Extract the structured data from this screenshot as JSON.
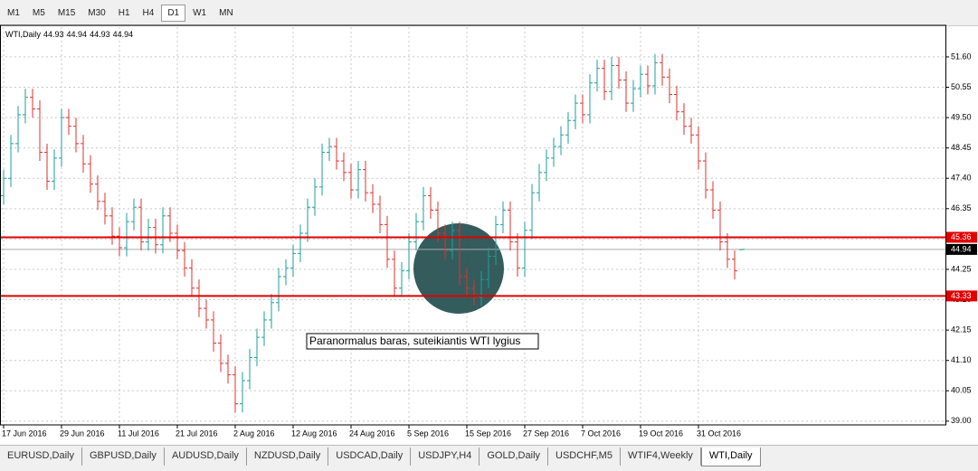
{
  "toolbar": {
    "timeframes": [
      "M1",
      "M5",
      "M15",
      "M30",
      "H1",
      "H4",
      "D1",
      "W1",
      "MN"
    ],
    "active_index": 6
  },
  "chart_data": {
    "type": "ohlc",
    "symbol": "WTI,Daily",
    "categories": [
      "17 Jun 2016",
      null,
      null,
      null,
      null,
      null,
      null,
      null,
      "29 Jun 2016",
      null,
      null,
      null,
      null,
      null,
      null,
      null,
      "11 Jul 2016",
      null,
      null,
      null,
      null,
      null,
      null,
      null,
      "21 Jul 2016",
      null,
      null,
      null,
      null,
      null,
      null,
      null,
      "2 Aug 2016",
      null,
      null,
      null,
      null,
      null,
      null,
      null,
      "12 Aug 2016",
      null,
      null,
      null,
      null,
      null,
      null,
      null,
      "24 Aug 2016",
      null,
      null,
      null,
      null,
      null,
      null,
      null,
      "5 Sep 2016",
      null,
      null,
      null,
      null,
      null,
      null,
      null,
      "15 Sep 2016",
      null,
      null,
      null,
      null,
      null,
      null,
      null,
      "27 Sep 2016",
      null,
      null,
      null,
      null,
      null,
      null,
      null,
      "7 Oct 2016",
      null,
      null,
      null,
      null,
      null,
      null,
      null,
      "19 Oct 2016",
      null,
      null,
      null,
      null,
      null,
      null,
      null,
      "31 Oct 2016",
      null,
      null,
      null,
      null,
      null,
      null
    ],
    "open": [
      46.8,
      47.4,
      48.6,
      49.6,
      50.2,
      49.8,
      48.3,
      47.3,
      48.1,
      49.5,
      49.2,
      48.6,
      47.9,
      47.2,
      46.6,
      46.1,
      45.4,
      45.0,
      45.9,
      46.4,
      45.2,
      45.7,
      45.1,
      46.1,
      45.5,
      44.9,
      44.3,
      43.6,
      42.9,
      42.5,
      41.7,
      41.0,
      40.6,
      39.6,
      40.4,
      41.2,
      41.9,
      42.5,
      43.1,
      44.0,
      44.3,
      44.8,
      45.5,
      46.4,
      47.1,
      48.3,
      48.5,
      48.0,
      47.6,
      47.0,
      47.7,
      46.9,
      46.5,
      45.8,
      44.6,
      43.6,
      44.2,
      45.2,
      45.9,
      46.8,
      46.3,
      45.5,
      44.9,
      45.6,
      44.0,
      43.6,
      43.3,
      43.9,
      44.7,
      45.8,
      46.3,
      45.2,
      44.3,
      45.6,
      46.9,
      47.6,
      48.1,
      48.5,
      48.9,
      49.4,
      50.0,
      49.6,
      50.7,
      51.2,
      50.4,
      51.3,
      50.8,
      50.0,
      50.5,
      51.0,
      50.6,
      51.4,
      50.9,
      50.3,
      49.7,
      49.2,
      48.9,
      48.0,
      47.0,
      46.3,
      45.2,
      44.6,
      44.93
    ],
    "high": [
      47.7,
      48.9,
      49.9,
      50.5,
      50.5,
      50.1,
      48.6,
      48.4,
      49.8,
      49.8,
      49.5,
      48.9,
      48.2,
      47.5,
      46.9,
      46.4,
      45.7,
      46.2,
      46.7,
      46.7,
      46.0,
      46.0,
      46.4,
      46.4,
      45.8,
      45.2,
      44.6,
      43.9,
      43.2,
      42.8,
      42.0,
      41.3,
      40.9,
      40.7,
      41.5,
      42.2,
      42.8,
      43.4,
      44.3,
      44.6,
      45.1,
      45.8,
      46.7,
      47.4,
      48.6,
      48.8,
      48.8,
      48.3,
      47.9,
      48.0,
      48.0,
      47.2,
      46.8,
      46.1,
      44.9,
      44.5,
      45.5,
      46.2,
      47.1,
      47.1,
      46.6,
      45.8,
      45.9,
      45.9,
      44.3,
      43.9,
      44.2,
      45.0,
      46.1,
      46.6,
      46.6,
      45.5,
      45.9,
      47.2,
      47.9,
      48.4,
      48.8,
      49.2,
      49.7,
      50.3,
      50.3,
      51.0,
      51.5,
      51.5,
      51.6,
      51.6,
      51.1,
      50.8,
      51.3,
      51.3,
      51.7,
      51.7,
      51.2,
      50.6,
      50.0,
      49.5,
      49.2,
      48.3,
      47.3,
      46.6,
      45.5,
      44.9,
      44.94
    ],
    "low": [
      46.5,
      47.1,
      48.3,
      49.3,
      49.5,
      48.0,
      47.0,
      47.0,
      47.8,
      48.9,
      48.3,
      47.6,
      46.9,
      46.3,
      45.8,
      45.1,
      44.7,
      44.7,
      45.6,
      44.9,
      44.9,
      44.8,
      44.8,
      45.2,
      44.6,
      44.0,
      43.3,
      42.6,
      42.2,
      41.4,
      40.7,
      40.3,
      39.3,
      39.3,
      40.1,
      40.9,
      41.6,
      42.2,
      42.8,
      43.7,
      44.0,
      44.5,
      45.2,
      46.1,
      46.8,
      48.0,
      47.7,
      47.3,
      46.7,
      46.7,
      46.6,
      46.2,
      45.5,
      44.3,
      43.3,
      43.3,
      43.9,
      44.9,
      45.6,
      46.0,
      45.2,
      44.6,
      44.6,
      43.7,
      43.3,
      43.0,
      43.0,
      43.6,
      44.4,
      45.5,
      44.9,
      44.0,
      44.0,
      45.3,
      46.6,
      47.3,
      47.8,
      48.2,
      48.6,
      49.1,
      49.3,
      49.3,
      50.4,
      50.1,
      50.1,
      50.5,
      49.7,
      49.7,
      50.2,
      50.3,
      50.3,
      50.6,
      50.0,
      49.4,
      48.9,
      48.6,
      47.7,
      46.7,
      46.0,
      44.9,
      44.3,
      43.9,
      44.93
    ],
    "close": [
      47.4,
      48.6,
      49.6,
      50.2,
      49.8,
      48.3,
      47.3,
      48.1,
      49.5,
      49.2,
      48.6,
      47.9,
      47.2,
      46.6,
      46.1,
      45.4,
      45.0,
      45.9,
      46.4,
      45.2,
      45.7,
      45.1,
      46.1,
      45.5,
      44.9,
      44.3,
      43.6,
      42.9,
      42.5,
      41.7,
      41.0,
      40.6,
      39.6,
      40.4,
      41.2,
      41.9,
      42.5,
      43.1,
      44.0,
      44.3,
      44.8,
      45.5,
      46.4,
      47.1,
      48.3,
      48.5,
      48.0,
      47.6,
      47.0,
      47.7,
      46.9,
      46.5,
      45.8,
      44.6,
      43.6,
      44.2,
      45.2,
      45.9,
      46.8,
      46.3,
      45.5,
      44.9,
      45.6,
      44.0,
      43.6,
      43.3,
      43.9,
      44.7,
      45.8,
      46.3,
      45.2,
      44.3,
      45.6,
      46.9,
      47.6,
      48.1,
      48.5,
      48.9,
      49.4,
      50.0,
      49.6,
      50.7,
      51.2,
      50.4,
      51.3,
      50.8,
      50.0,
      50.5,
      51.0,
      50.6,
      51.4,
      50.9,
      50.3,
      49.7,
      49.2,
      48.9,
      48.0,
      47.0,
      46.3,
      45.2,
      44.6,
      44.2,
      44.94
    ],
    "up_color": "#1f9e9e",
    "down_color": "#e03030",
    "ylim": [
      38.87,
      52.63
    ],
    "yticks": [
      {
        "value": 51.6,
        "label": "51.60"
      },
      {
        "value": 50.55,
        "label": "50.55"
      },
      {
        "value": 49.5,
        "label": "49.50"
      },
      {
        "value": 48.45,
        "label": "48.45"
      },
      {
        "value": 47.4,
        "label": "47.40"
      },
      {
        "value": 46.35,
        "label": "46.35"
      },
      {
        "value": 45.3,
        "label": "45.30"
      },
      {
        "value": 44.25,
        "label": "44.25"
      },
      {
        "value": 43.2,
        "label": "43.20"
      },
      {
        "value": 42.15,
        "label": "42.15"
      },
      {
        "value": 41.1,
        "label": "41.10"
      },
      {
        "value": 40.05,
        "label": "40.05"
      },
      {
        "value": 39,
        "label": "39.00"
      }
    ],
    "grid": true,
    "levels": [
      {
        "value": 45.36,
        "label": "45.36"
      },
      {
        "value": 43.33,
        "label": "43.33"
      }
    ],
    "level_color": "#e00000",
    "current_price": {
      "value": 44.94,
      "label": "44.94"
    },
    "annotation": "Paranormalus baras, suteikiantis WTI lygius"
  },
  "tabs": {
    "items": [
      "EURUSD,Daily",
      "GBPUSD,Daily",
      "AUDUSD,Daily",
      "NZDUSD,Daily",
      "USDCAD,Daily",
      "USDJPY,H4",
      "GOLD,Daily",
      "USDCHF,M5",
      "WTIF4,Weekly",
      "WTI,Daily"
    ],
    "active_index": 9
  }
}
